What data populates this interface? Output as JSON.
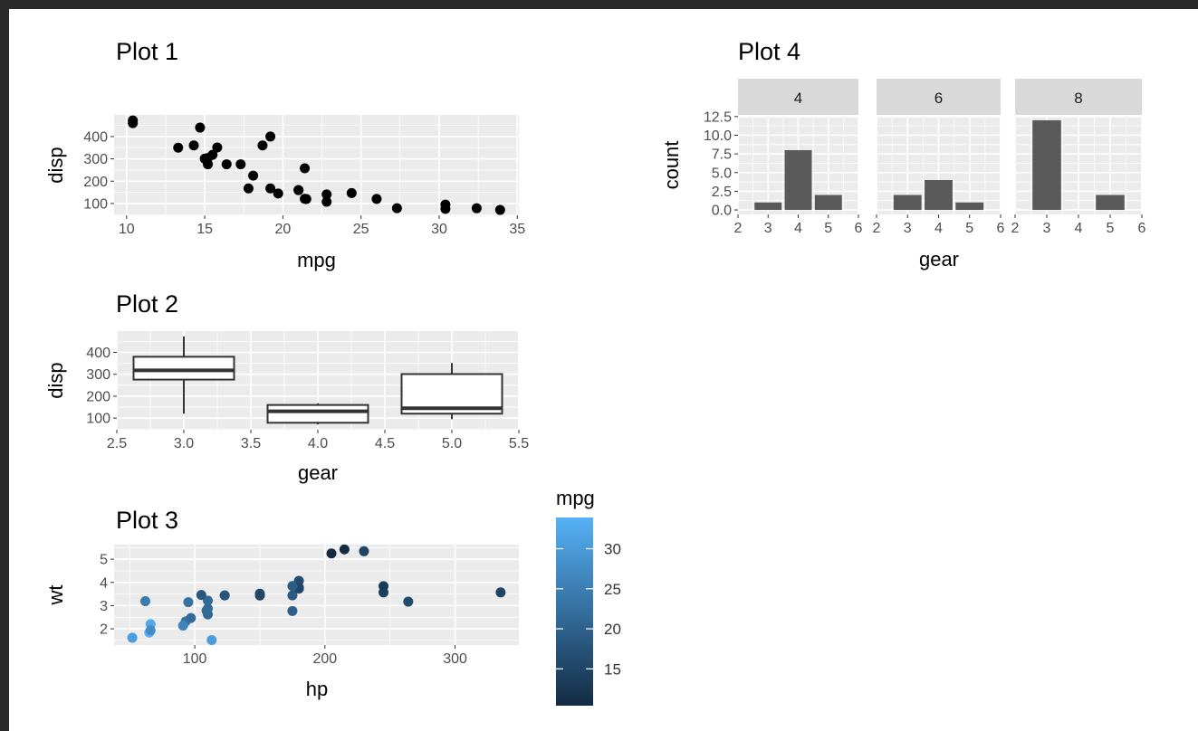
{
  "chart_data": [
    {
      "type": "scatter",
      "title": "Plot 1",
      "xlabel": "mpg",
      "ylabel": "disp",
      "xlim": [
        9.2,
        35.1
      ],
      "ylim": [
        47,
        497
      ],
      "xticks": [
        10,
        15,
        20,
        25,
        30,
        35
      ],
      "yticks": [
        100,
        200,
        300,
        400
      ],
      "grid": true,
      "x": [
        21.0,
        21.0,
        22.8,
        21.4,
        18.7,
        18.1,
        14.3,
        24.4,
        22.8,
        19.2,
        17.8,
        16.4,
        17.3,
        15.2,
        10.4,
        10.4,
        14.7,
        32.4,
        30.4,
        33.9,
        21.5,
        15.5,
        15.2,
        13.3,
        19.2,
        27.3,
        26.0,
        30.4,
        15.8,
        19.7,
        15.0,
        21.4
      ],
      "y": [
        160,
        160,
        108,
        258,
        360,
        225,
        360,
        146.7,
        140.8,
        167.6,
        167.6,
        275.8,
        275.8,
        275.8,
        472,
        460,
        440,
        78.7,
        75.7,
        71.1,
        120.1,
        318,
        304,
        350,
        400,
        79,
        120.3,
        95.1,
        351,
        145,
        301,
        121
      ]
    },
    {
      "type": "box",
      "title": "Plot 2",
      "xlabel": "gear",
      "ylabel": "disp",
      "xlim": [
        2.5,
        5.5
      ],
      "ylim": [
        47,
        497
      ],
      "xticks": [
        "2.5",
        "3.0",
        "3.5",
        "4.0",
        "4.5",
        "5.0",
        "5.5"
      ],
      "yticks": [
        100,
        200,
        300,
        400
      ],
      "grid": true,
      "boxes": [
        {
          "gear": 3,
          "min": 120.1,
          "q1": 275.8,
          "median": 318,
          "q3": 380,
          "max": 472
        },
        {
          "gear": 4,
          "min": 71.1,
          "q1": 78.9,
          "median": 130.9,
          "q3": 160,
          "max": 167.6
        },
        {
          "gear": 5,
          "min": 95.1,
          "q1": 120.3,
          "median": 145,
          "q3": 301,
          "max": 351
        }
      ]
    },
    {
      "type": "scatter",
      "title": "Plot 3",
      "xlabel": "hp",
      "ylabel": "wt",
      "xlim": [
        38,
        349
      ],
      "ylim": [
        1.3,
        5.63
      ],
      "xticks": [
        100,
        200,
        300
      ],
      "yticks": [
        2,
        3,
        4,
        5
      ],
      "grid": true,
      "color_by": "mpg",
      "legend": {
        "title": "mpg",
        "placement": "right",
        "ticks": [
          15,
          20,
          25,
          30
        ],
        "range": [
          10.4,
          33.9
        ],
        "low_color": "#132b43",
        "high_color": "#56b1f7"
      },
      "x": [
        110,
        110,
        93,
        110,
        175,
        105,
        245,
        62,
        95,
        123,
        123,
        180,
        180,
        180,
        205,
        215,
        230,
        66,
        52,
        65,
        97,
        150,
        150,
        245,
        175,
        66,
        91,
        113,
        264,
        175,
        335,
        109
      ],
      "y": [
        2.62,
        2.875,
        2.32,
        3.215,
        3.44,
        3.46,
        3.57,
        3.19,
        3.15,
        3.44,
        3.44,
        4.07,
        3.73,
        3.78,
        5.25,
        5.424,
        5.345,
        2.2,
        1.615,
        1.835,
        2.465,
        3.52,
        3.435,
        3.84,
        3.845,
        1.935,
        2.14,
        1.513,
        3.17,
        2.77,
        3.57,
        2.78
      ],
      "mpg": [
        21.0,
        21.0,
        22.8,
        21.4,
        18.7,
        18.1,
        14.3,
        24.4,
        22.8,
        19.2,
        17.8,
        16.4,
        17.3,
        15.2,
        10.4,
        10.4,
        14.7,
        32.4,
        30.4,
        33.9,
        21.5,
        15.5,
        15.2,
        13.3,
        19.2,
        27.3,
        26.0,
        30.4,
        15.8,
        19.7,
        15.0,
        21.4
      ]
    },
    {
      "type": "bar",
      "title": "Plot 4",
      "xlabel": "gear",
      "ylabel": "count",
      "xlim": [
        2,
        6
      ],
      "ylim": [
        -0.6,
        12.6
      ],
      "xticks": [
        2,
        3,
        4,
        5,
        6
      ],
      "yticks": [
        "0.0",
        "2.5",
        "5.0",
        "7.5",
        "10.0",
        "12.5"
      ],
      "grid": true,
      "facets": [
        {
          "label": "4",
          "categories": [
            3,
            4,
            5
          ],
          "values": [
            1,
            8,
            2
          ]
        },
        {
          "label": "6",
          "categories": [
            3,
            4,
            5
          ],
          "values": [
            2,
            4,
            1
          ]
        },
        {
          "label": "8",
          "categories": [
            3,
            5
          ],
          "values": [
            12,
            2
          ]
        }
      ]
    }
  ]
}
